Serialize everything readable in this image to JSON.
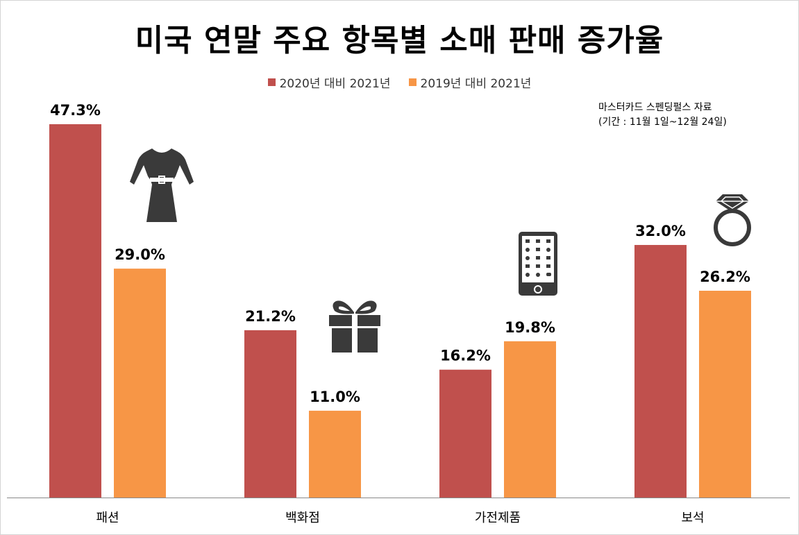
{
  "chart_data": {
    "type": "bar",
    "title": "미국 연말 주요  항목별 소매 판매 증가율",
    "categories": [
      "패션",
      "백화점",
      "가전제품",
      "보석"
    ],
    "series": [
      {
        "name": "2020년 대비 2021년",
        "color": "#c0504d",
        "values": [
          47.3,
          21.2,
          16.2,
          32.0
        ],
        "labels": [
          "47.3%",
          "21.2%",
          "16.2%",
          "32.0%"
        ]
      },
      {
        "name": "2019년 대비 2021년",
        "color": "#f79646",
        "values": [
          29.0,
          11.0,
          19.8,
          26.2
        ],
        "labels": [
          "29.0%",
          "11.0%",
          "19.8%",
          "26.2%"
        ]
      }
    ],
    "ylim": [
      0,
      47.3
    ],
    "grid": false,
    "legend_position": "top",
    "annotation": [
      "마스터카드 스펜딩펄스 자료",
      "(기간 : 11월 1일~12월 24일)"
    ],
    "category_icons": [
      "dress-icon",
      "gift-box-icon",
      "smartphone-icon",
      "diamond-ring-icon"
    ]
  }
}
